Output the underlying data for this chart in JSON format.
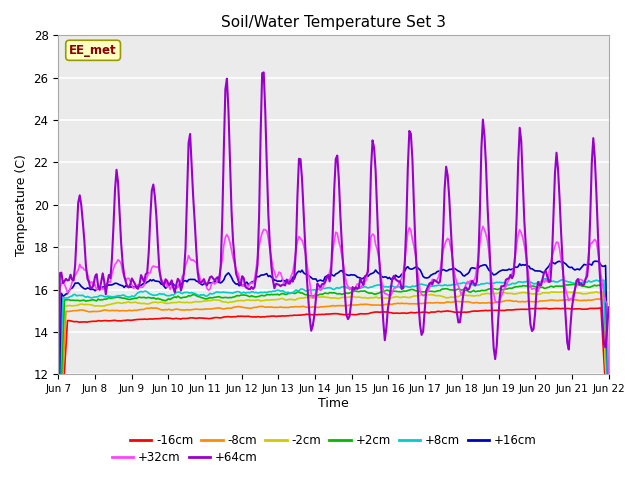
{
  "title": "Soil/Water Temperature Set 3",
  "xlabel": "Time",
  "ylabel": "Temperature (C)",
  "ylim": [
    12,
    28
  ],
  "yticks": [
    12,
    14,
    16,
    18,
    20,
    22,
    24,
    26,
    28
  ],
  "x_days": [
    "Jun 7",
    "Jun 8",
    "Jun 9",
    "Jun 10",
    "Jun 11",
    "Jun 12",
    "Jun 13",
    "Jun 14",
    "Jun 15",
    "Jun 16",
    "Jun 17",
    "Jun 18",
    "Jun 19",
    "Jun 20",
    "Jun 21",
    "Jun 22"
  ],
  "annotation_text": "EE_met",
  "annotation_fg": "#8B0000",
  "annotation_bg": "#FFFFC0",
  "annotation_border": "#999900",
  "bg_color": "#EBEBEB",
  "grid_color": "#FFFFFF",
  "series_colors": {
    "-16cm": "#FF0000",
    "-8cm": "#FF8C00",
    "-2cm": "#CCCC00",
    "+2cm": "#00BB00",
    "+8cm": "#00CCCC",
    "+16cm": "#0000BB",
    "+32cm": "#FF44FF",
    "+64cm": "#9900CC"
  }
}
